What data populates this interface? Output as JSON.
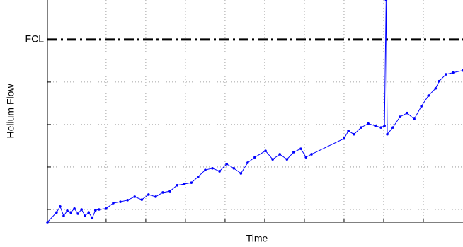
{
  "chart_data": {
    "type": "line",
    "xlabel": "Time",
    "ylabel": "Helium Flow",
    "color": "#0000ff",
    "xlim": [
      0,
      10.48
    ],
    "ylim": [
      0,
      5.23
    ],
    "xticks": [
      1.48,
      2.48,
      3.48,
      4.48,
      5.48,
      6.48,
      7.48,
      8.48,
      9.48
    ],
    "yticks": [
      0.3,
      1.3,
      2.3,
      3.3
    ],
    "grid": true,
    "reference_line": {
      "label": "FCL",
      "value": 4.3,
      "color": "#000000"
    },
    "x": [
      0,
      0.23,
      0.32,
      0.41,
      0.5,
      0.59,
      0.68,
      0.77,
      0.86,
      0.95,
      1.04,
      1.13,
      1.21,
      1.3,
      1.48,
      1.66,
      1.84,
      2.02,
      2.2,
      2.38,
      2.55,
      2.73,
      2.91,
      3.09,
      3.27,
      3.45,
      3.63,
      3.8,
      3.98,
      4.16,
      4.34,
      4.52,
      4.7,
      4.88,
      5.05,
      5.23,
      5.5,
      5.68,
      5.86,
      6.04,
      6.21,
      6.39,
      6.52,
      6.66,
      7.48,
      7.59,
      7.73,
      7.91,
      8.09,
      8.27,
      8.41,
      8.5,
      8.54,
      8.57,
      8.71,
      8.89,
      9.07,
      9.25,
      9.43,
      9.61,
      9.79,
      9.88,
      10.05,
      10.23,
      10.48
    ],
    "values": [
      0,
      0.23,
      0.37,
      0.15,
      0.27,
      0.23,
      0.32,
      0.2,
      0.3,
      0.15,
      0.23,
      0.1,
      0.28,
      0.3,
      0.32,
      0.45,
      0.48,
      0.52,
      0.6,
      0.53,
      0.65,
      0.6,
      0.7,
      0.73,
      0.87,
      0.9,
      0.93,
      1.07,
      1.23,
      1.27,
      1.2,
      1.37,
      1.27,
      1.15,
      1.4,
      1.53,
      1.68,
      1.48,
      1.6,
      1.48,
      1.65,
      1.73,
      1.53,
      1.6,
      1.97,
      2.15,
      2.07,
      2.23,
      2.32,
      2.27,
      2.23,
      2.27,
      5.23,
      2.07,
      2.23,
      2.48,
      2.57,
      2.43,
      2.73,
      2.98,
      3.15,
      3.32,
      3.48,
      3.52,
      3.57
    ]
  }
}
